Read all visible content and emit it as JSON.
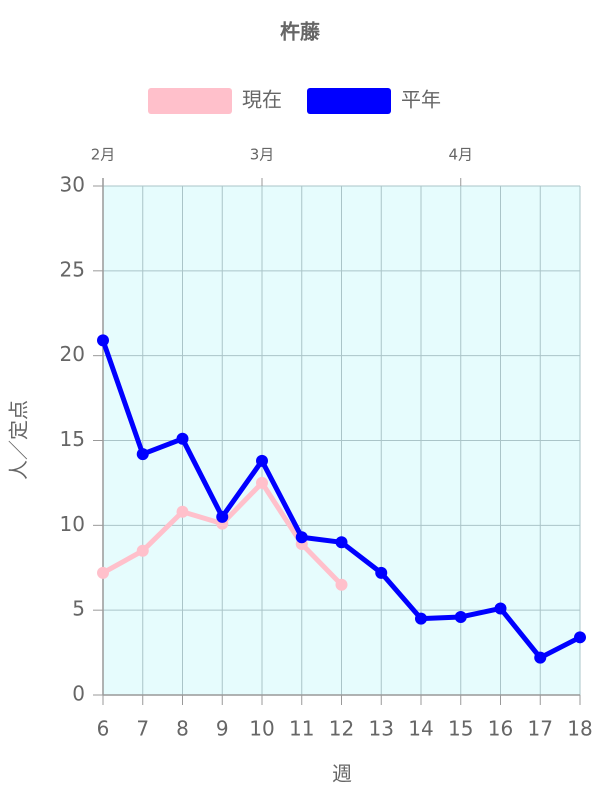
{
  "chart_data": {
    "type": "line",
    "title": "杵藤",
    "x": [
      6,
      7,
      8,
      9,
      10,
      11,
      12,
      13,
      14,
      15,
      16,
      17,
      18
    ],
    "series": [
      {
        "name": "現在",
        "color": "#ffc0cb",
        "values": [
          7.2,
          8.5,
          10.8,
          10.1,
          12.5,
          8.9,
          6.5,
          null,
          null,
          null,
          null,
          null,
          null
        ]
      },
      {
        "name": "平年",
        "color": "#0000ff",
        "values": [
          20.9,
          14.2,
          15.1,
          10.5,
          13.8,
          9.3,
          9.0,
          7.2,
          4.5,
          4.6,
          5.1,
          2.2,
          3.4
        ]
      }
    ],
    "xlim": [
      6,
      18
    ],
    "xticks": [
      6,
      7,
      8,
      9,
      10,
      11,
      12,
      13,
      14,
      15,
      16,
      17,
      18
    ],
    "x2ticks": [
      {
        "value": 6,
        "label": "2月"
      },
      {
        "value": 10,
        "label": "3月"
      },
      {
        "value": 15,
        "label": "4月"
      }
    ],
    "ylim": [
      0,
      30
    ],
    "yticks": [
      0,
      5,
      10,
      15,
      20,
      25,
      30
    ],
    "xlabel": "週",
    "ylabel": "人／定点",
    "grid": true,
    "plot_background": "#e6fcfd"
  }
}
